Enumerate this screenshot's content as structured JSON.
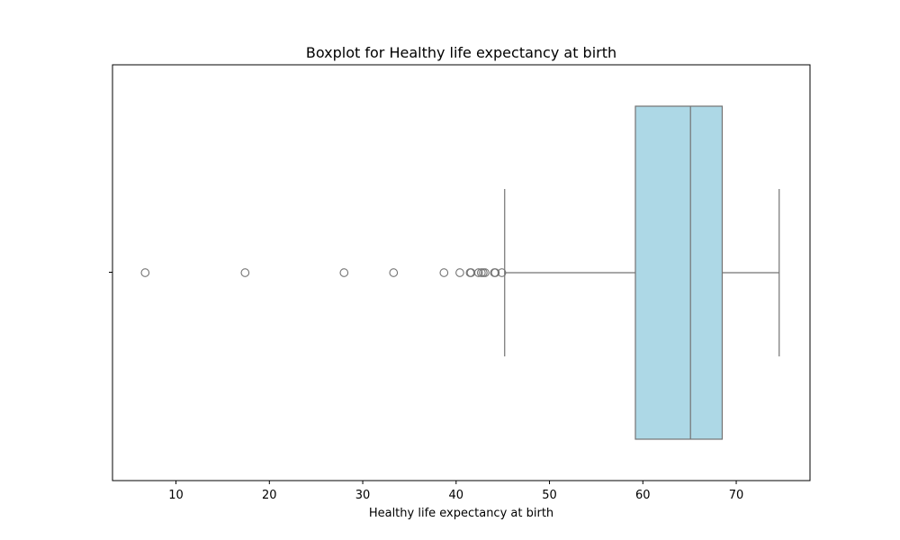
{
  "chart_data": {
    "type": "box",
    "title": "Boxplot for Healthy life expectancy at birth",
    "xlabel": "Healthy life expectancy at birth",
    "ylabel": "",
    "xlim": [
      3.2,
      77.9
    ],
    "xticks": [
      10,
      20,
      30,
      40,
      50,
      60,
      70
    ],
    "grid": false,
    "box": {
      "whisker_low": 45.2,
      "q1": 59.2,
      "median": 65.1,
      "q3": 68.5,
      "whisker_high": 74.6,
      "outliers": [
        6.7,
        17.4,
        28.0,
        33.3,
        38.7,
        40.4,
        41.5,
        41.6,
        42.4,
        42.7,
        42.9,
        43.1,
        44.1,
        44.2,
        44.9
      ]
    },
    "colors": {
      "box_fill": "#add8e6",
      "lines": "#737373",
      "frame": "#000000"
    }
  }
}
